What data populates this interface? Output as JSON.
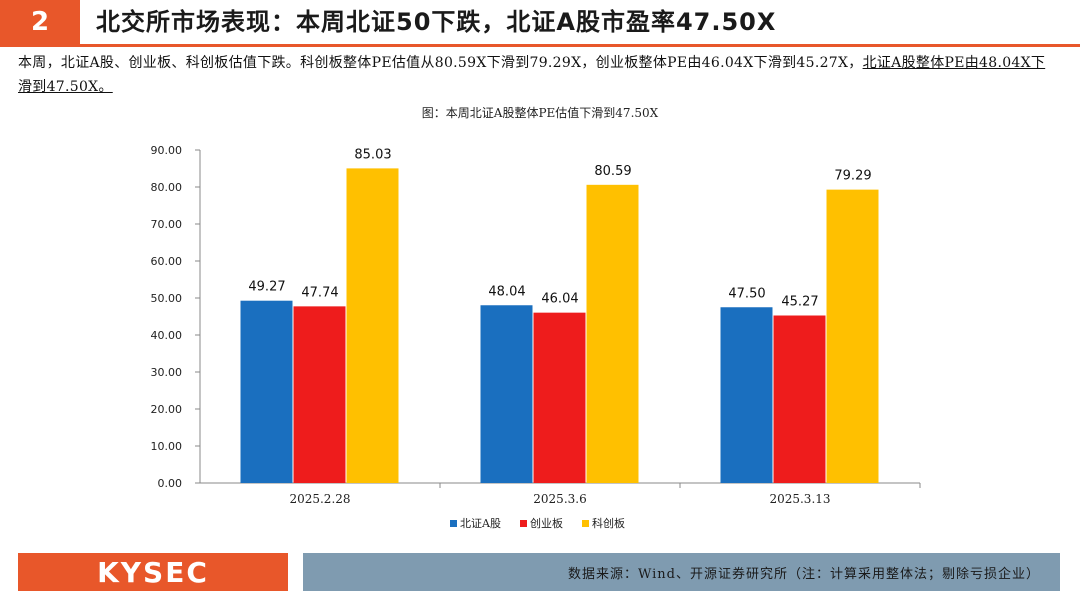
{
  "header": {
    "number": "2",
    "title": "北交所市场表现：本周北证50下跌，北证A股市盈率47.50X"
  },
  "summary": {
    "text": "本周，北证A股、创业板、科创板估值下跌。科创板整体PE估值从80.59X下滑到79.29X，创业板整体PE由46.04X下滑到45.27X，",
    "underlined": "北证A股整体PE由48.04X下滑到47.50X。"
  },
  "chart_data": {
    "type": "bar",
    "title": "图：本周北证A股整体PE估值下滑到47.50X",
    "categories": [
      "2025.2.28",
      "2025.3.6",
      "2025.3.13"
    ],
    "series": [
      {
        "name": "北证A股",
        "color": "#1a6fbf",
        "values": [
          49.27,
          48.04,
          47.5
        ],
        "labels": [
          "49.27",
          "48.04",
          "47.50"
        ]
      },
      {
        "name": "创业板",
        "color": "#ee1c1c",
        "values": [
          47.74,
          46.04,
          45.27
        ],
        "labels": [
          "47.74",
          "46.04",
          "45.27"
        ]
      },
      {
        "name": "科创板",
        "color": "#ffc000",
        "values": [
          85.03,
          80.59,
          79.29
        ],
        "labels": [
          "85.03",
          "80.59",
          "79.29"
        ]
      }
    ],
    "ylim": [
      0,
      90
    ],
    "yticks": [
      "0.00",
      "10.00",
      "20.00",
      "30.00",
      "40.00",
      "50.00",
      "60.00",
      "70.00",
      "80.00",
      "90.00"
    ],
    "xlabel": "",
    "ylabel": "",
    "legend_position": "bottom"
  },
  "footer": {
    "logo": "KYSEC",
    "source": "数据来源：Wind、开源证券研究所（注：计算采用整体法；剔除亏损企业）"
  }
}
